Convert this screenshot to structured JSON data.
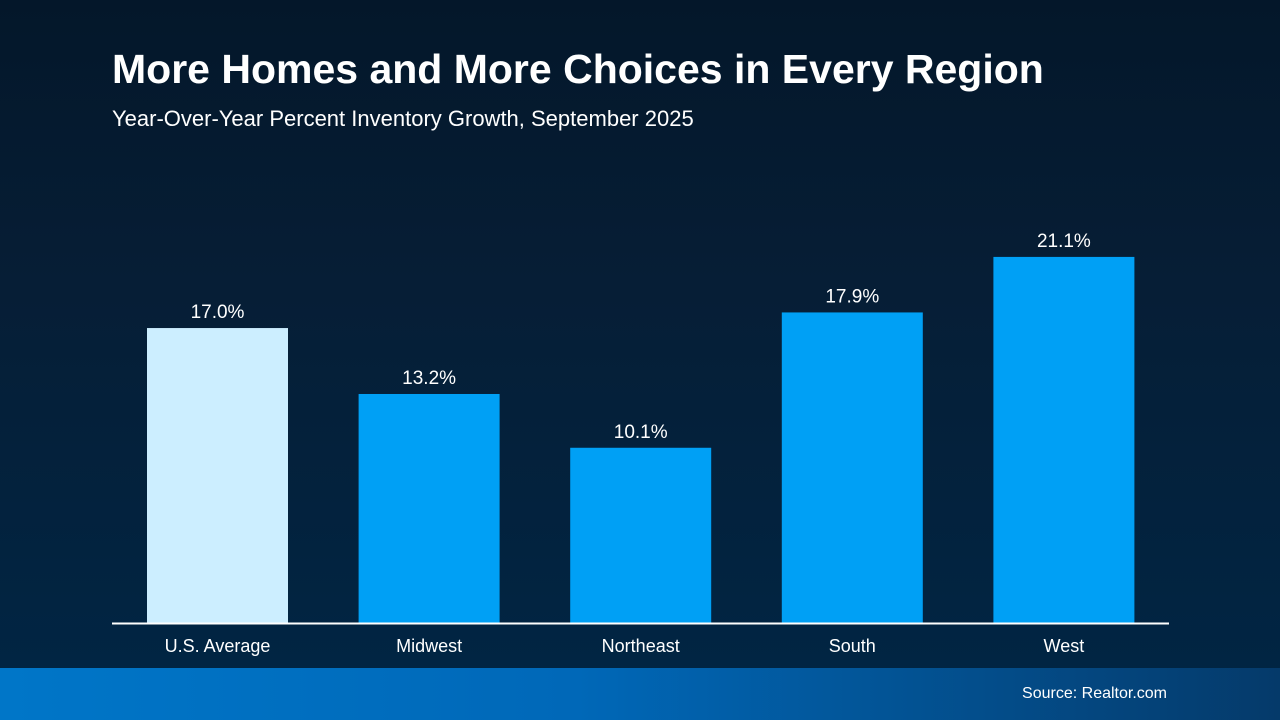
{
  "header": {
    "title": "More Homes and More Choices in Every Region",
    "subtitle": "Year-Over-Year Percent Inventory Growth, September 2025"
  },
  "footer": {
    "source": "Source: Realtor.com"
  },
  "chart_data": {
    "type": "bar",
    "title": "More Homes and More Choices in Every Region",
    "subtitle": "Year-Over-Year Percent Inventory Growth, September 2025",
    "categories": [
      "U.S. Average",
      "Midwest",
      "Northeast",
      "South",
      "West"
    ],
    "values": [
      17.0,
      13.2,
      10.1,
      17.9,
      21.1
    ],
    "data_labels": [
      "17.0%",
      "13.2%",
      "10.1%",
      "17.9%",
      "21.1%"
    ],
    "bar_colors": [
      "#cceeff",
      "#00a0f5",
      "#00a0f5",
      "#00a0f5",
      "#00a0f5"
    ],
    "xlabel": "",
    "ylabel": "",
    "ylim": [
      0,
      25
    ],
    "grid": false,
    "legend": "none"
  }
}
